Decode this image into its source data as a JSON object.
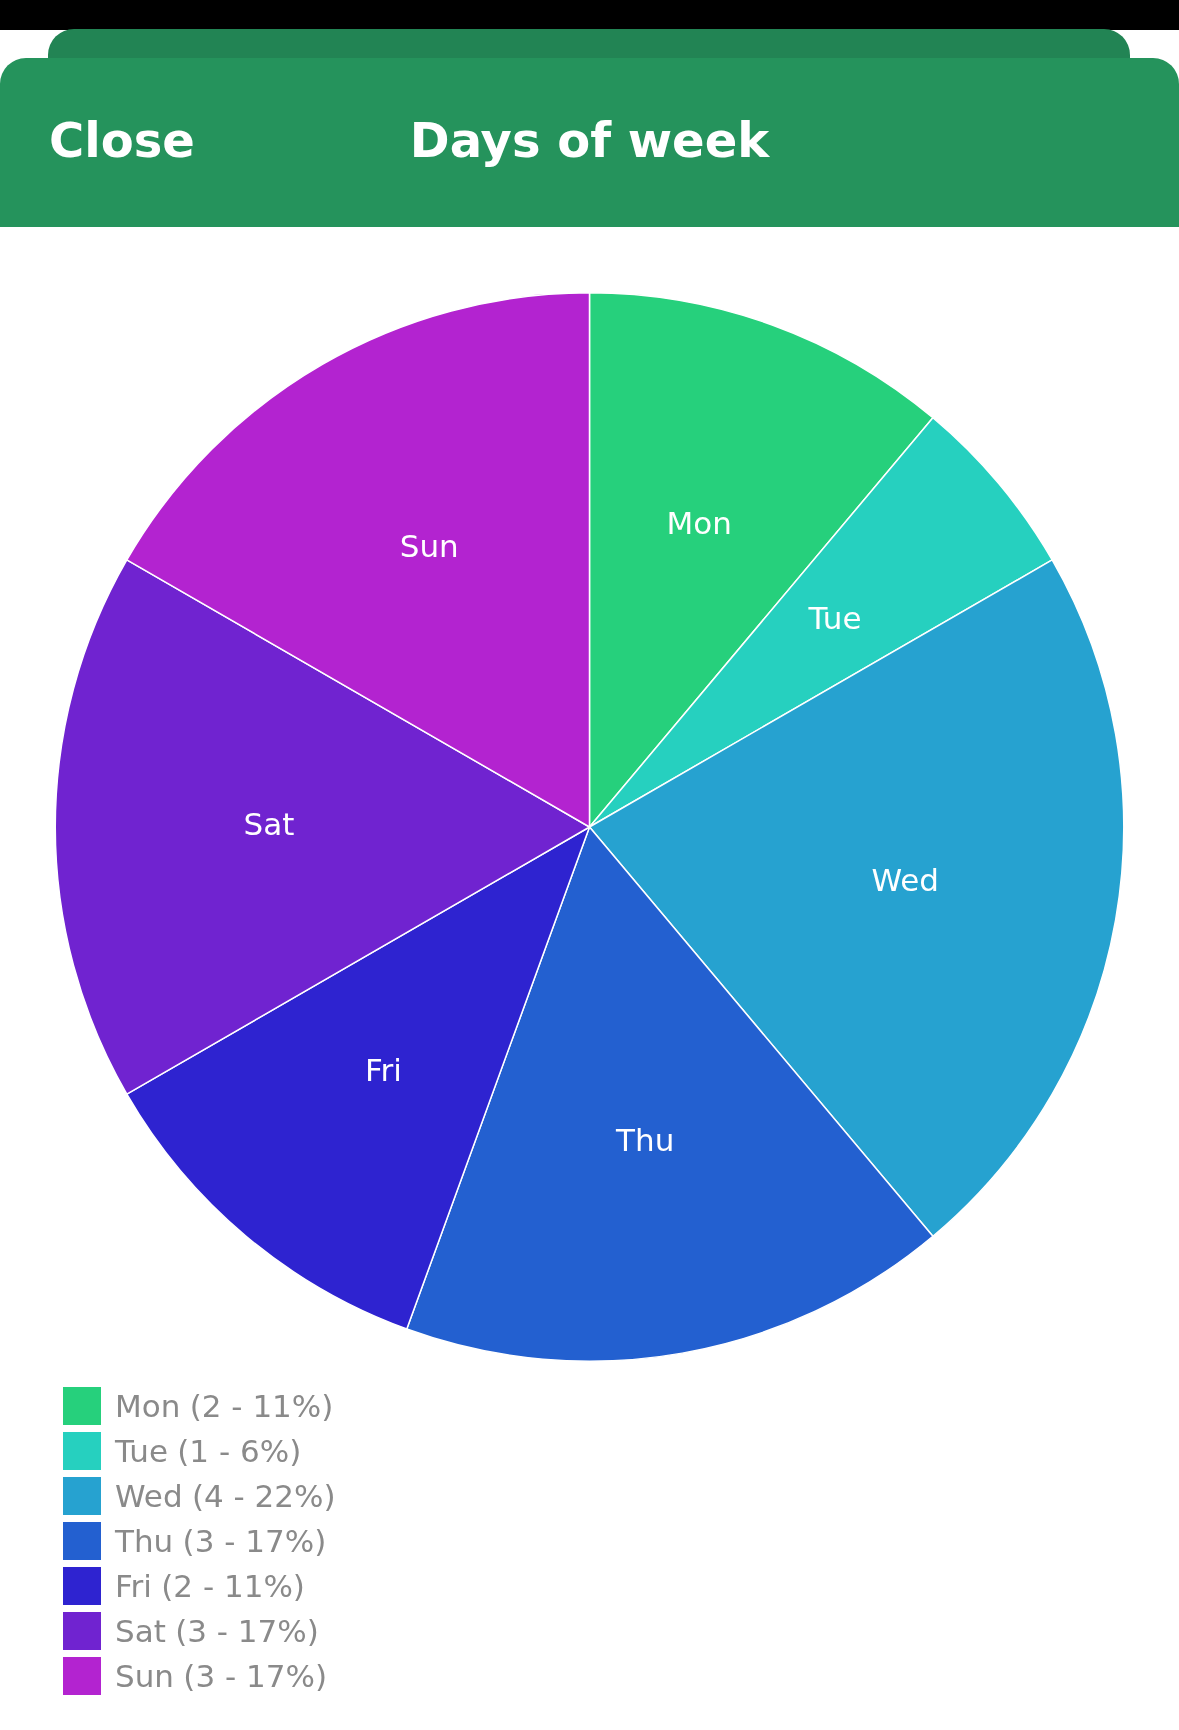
{
  "chart_data": {
    "type": "pie",
    "title": "Days of week",
    "categories": [
      "Mon",
      "Tue",
      "Wed",
      "Thu",
      "Fri",
      "Sat",
      "Sun"
    ],
    "values": [
      2,
      1,
      4,
      3,
      2,
      3,
      3
    ],
    "value_labels": [
      "(2 - 11%)",
      "(1 - 6%)",
      "(4 - 22%)",
      "(3 - 17%)",
      "(2 - 11%)",
      "(3 - 17%)",
      "(3 - 17%)"
    ],
    "colors": [
      "#26d07c",
      "#26d0bf",
      "#26a2d0",
      "#2360d0",
      "#2e23d0",
      "#7023d0",
      "#b323d0"
    ],
    "legend": "bottom left",
    "annotations": [
      "Close"
    ]
  }
}
